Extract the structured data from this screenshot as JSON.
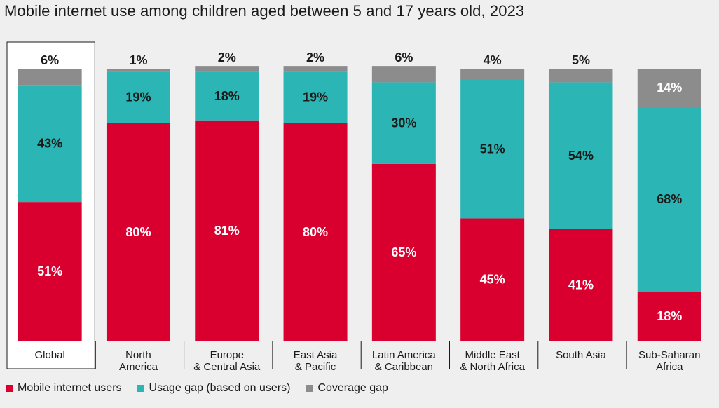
{
  "chart_data": {
    "type": "bar",
    "stacked": true,
    "title": "Mobile internet use among children aged between 5 and 17 years old, 2023",
    "categories": [
      [
        "Global"
      ],
      [
        "North",
        "America"
      ],
      [
        "Europe",
        "& Central Asia"
      ],
      [
        "East Asia",
        "& Pacific"
      ],
      [
        "Latin America",
        "& Caribbean"
      ],
      [
        "Middle East",
        "& North Africa"
      ],
      [
        "South Asia"
      ],
      [
        "Sub-Saharan",
        "Africa"
      ]
    ],
    "series": [
      {
        "name": "Mobile internet users",
        "values": [
          51,
          80,
          81,
          80,
          65,
          45,
          41,
          18
        ],
        "labels": [
          "51%",
          "80%",
          "81%",
          "80%",
          "65%",
          "45%",
          "41%",
          "18%"
        ]
      },
      {
        "name": "Usage gap (based on users)",
        "values": [
          43,
          19,
          18,
          19,
          30,
          51,
          54,
          68
        ],
        "labels": [
          "43%",
          "19%",
          "18%",
          "19%",
          "30%",
          "51%",
          "54%",
          "68%"
        ]
      },
      {
        "name": "Coverage gap",
        "values": [
          6,
          1,
          2,
          2,
          6,
          4,
          5,
          14
        ],
        "labels": [
          "6%",
          "1%",
          "2%",
          "2%",
          "6%",
          "4%",
          "5%",
          "14%"
        ]
      }
    ],
    "ylim": [
      0,
      100
    ],
    "grid": false,
    "legend_position": "bottom-left",
    "highlighted_category": "Global",
    "colors": {
      "Mobile internet users": "#d9002f",
      "Usage gap (based on users)": "#2bb5b5",
      "Coverage gap": "#8c8c8c",
      "background": "#efefef",
      "highlight_box": "#ffffff"
    }
  }
}
